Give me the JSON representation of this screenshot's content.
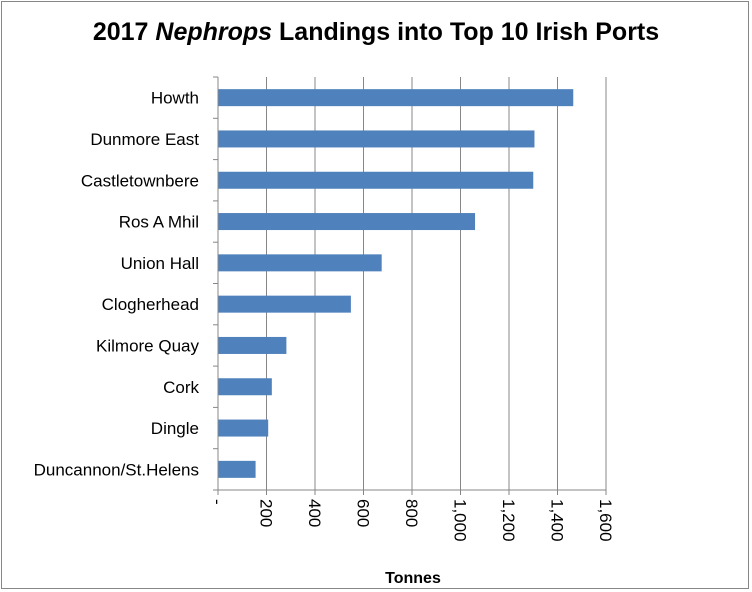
{
  "chart_data": {
    "type": "bar",
    "orientation": "horizontal",
    "title_prefix": "2017 ",
    "title_italic": "Nephrops",
    "title_suffix": " Landings into Top 10 Irish Ports",
    "xlabel": "Tonnes",
    "ylabel": "",
    "categories": [
      "Howth",
      "Dunmore East",
      "Castletownbere",
      "Ros A Mhil",
      "Union Hall",
      "Clogherhead",
      "Kilmore Quay",
      "Cork",
      "Dingle",
      "Duncannon/St.Helens"
    ],
    "values": [
      1465,
      1305,
      1300,
      1060,
      675,
      548,
      282,
      222,
      207,
      155
    ],
    "xlim": [
      0,
      1600
    ],
    "tick_labels": [
      "-",
      "200",
      "400",
      "600",
      "800",
      "1,000",
      "1,200",
      "1,400",
      "1,600"
    ],
    "grid": "vertical",
    "legend": "none",
    "bar_color": "#4F81BD"
  }
}
